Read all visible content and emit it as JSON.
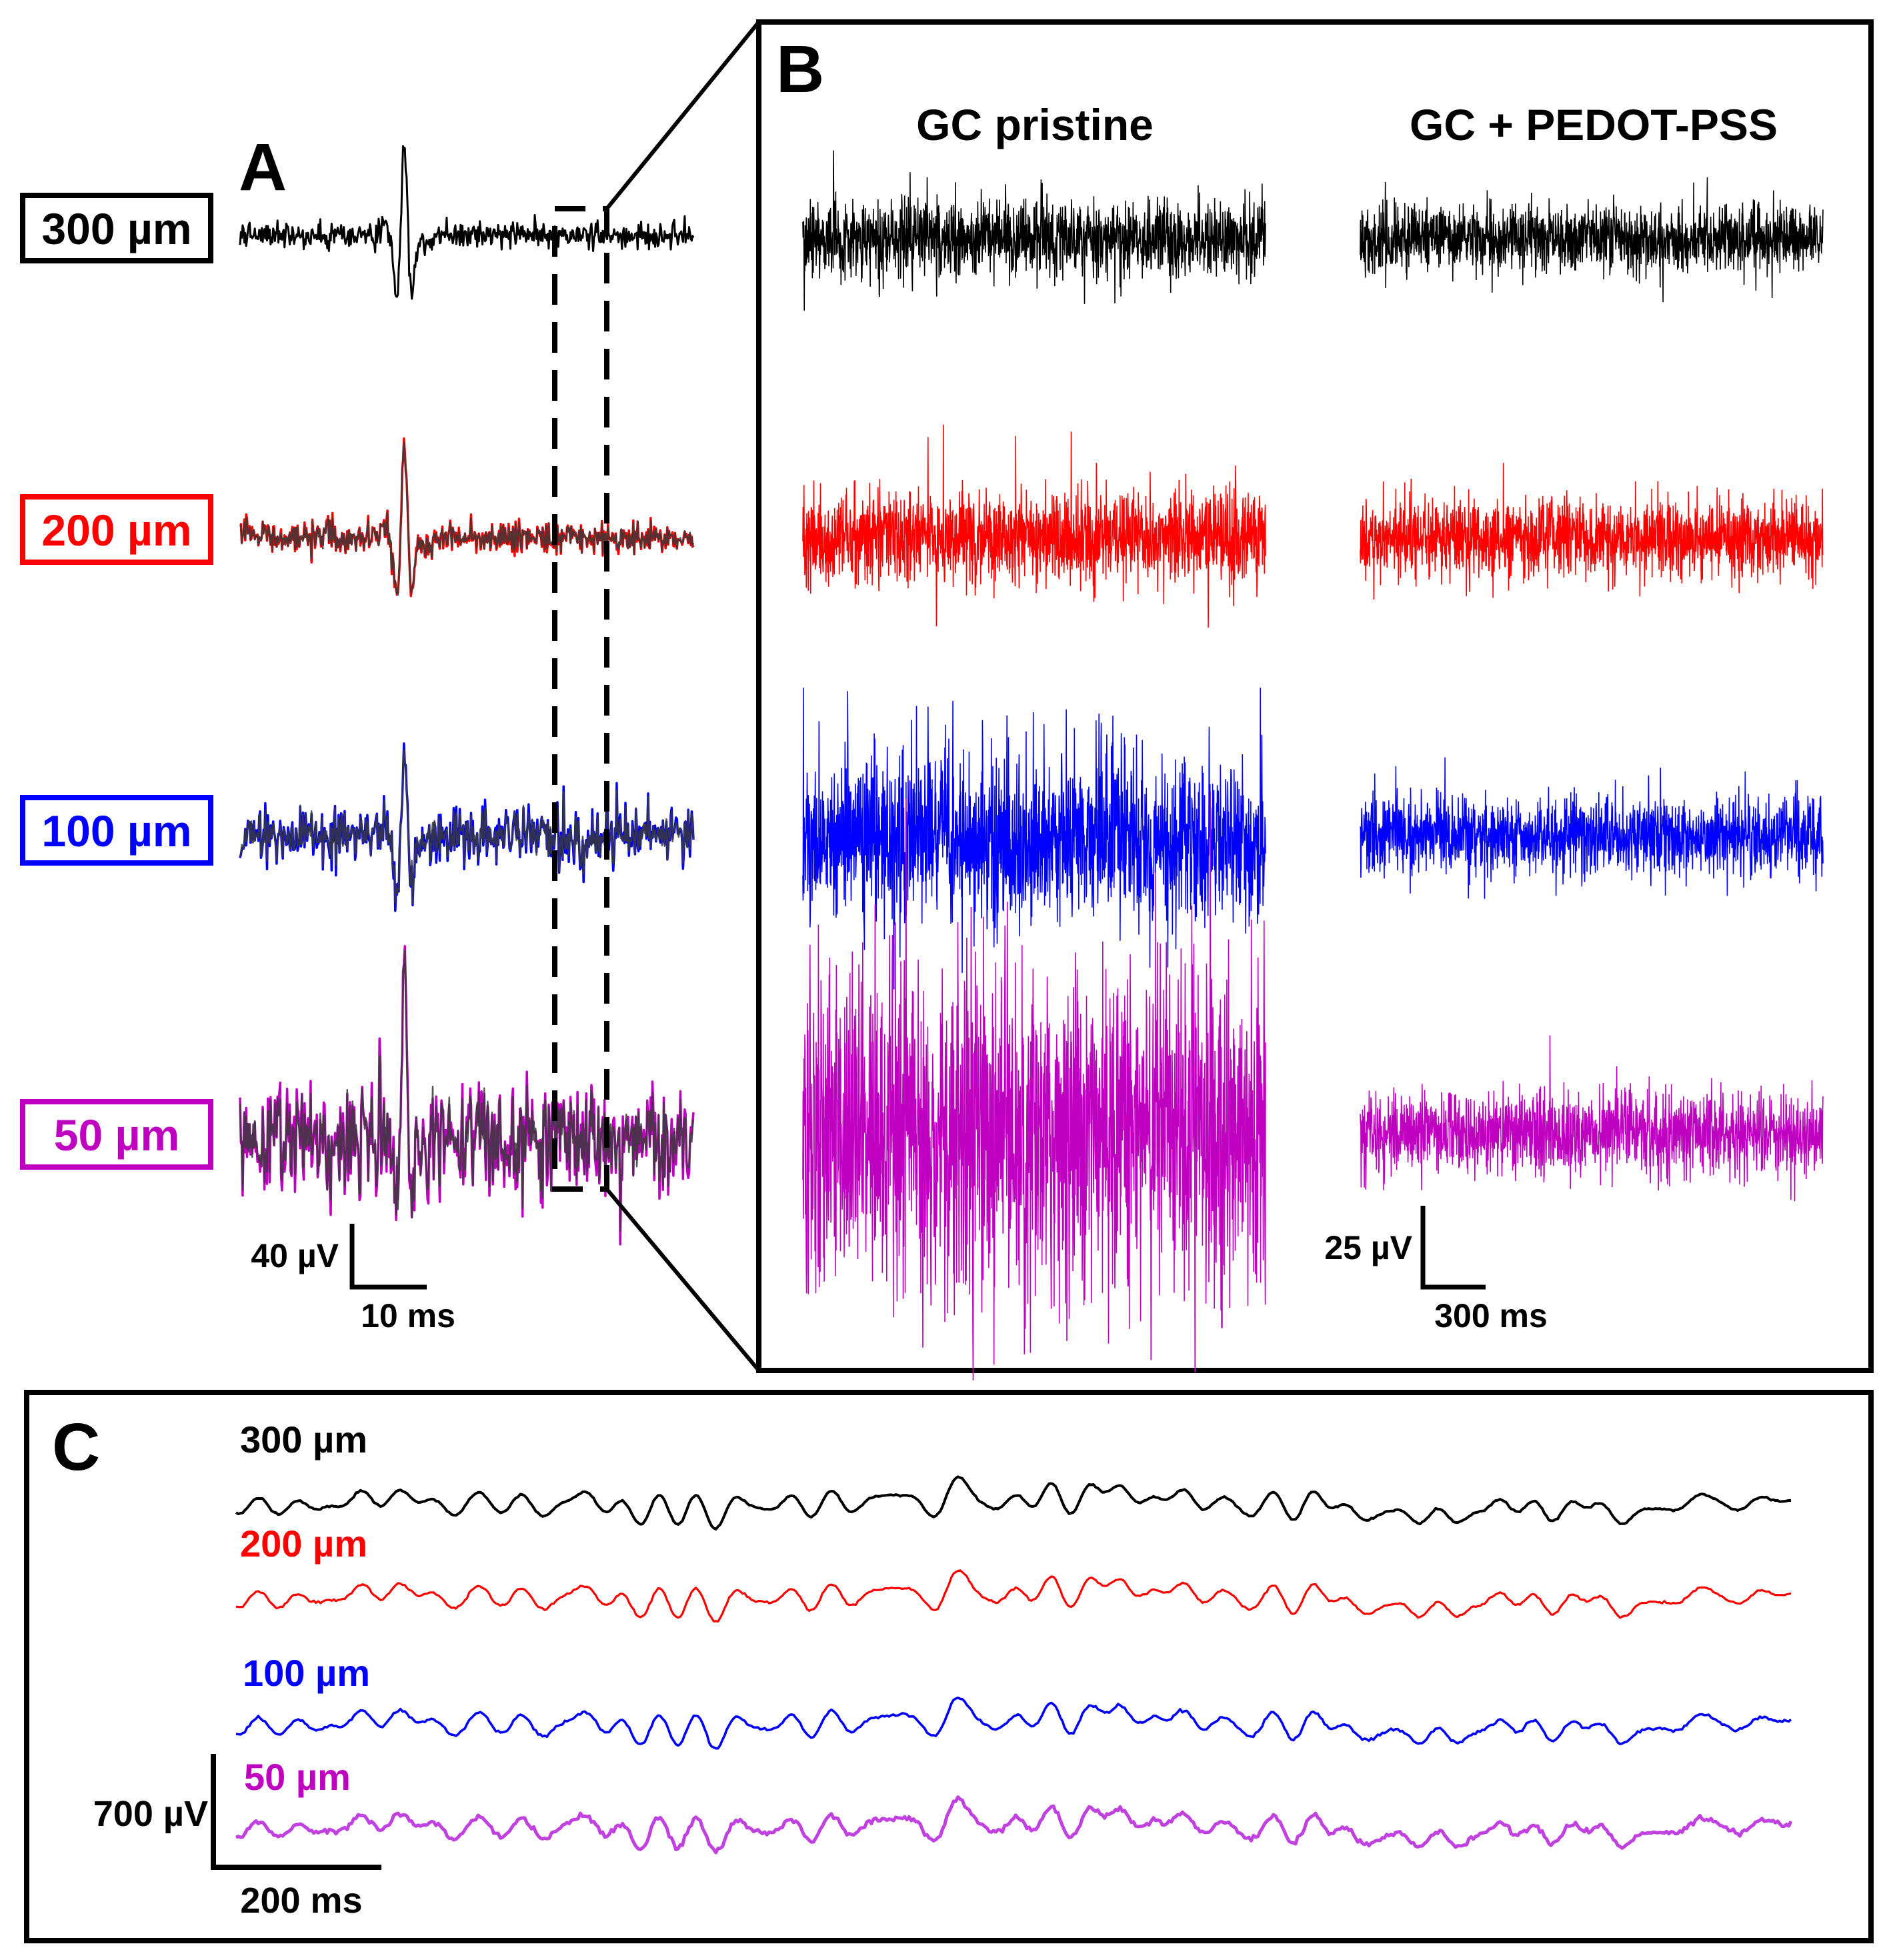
{
  "figure": {
    "panel_a_letter": "A",
    "panel_b_letter": "B",
    "panel_c_letter": "C"
  },
  "colors": {
    "300um": "#000000",
    "200um": "#ff0000",
    "100um": "#0000ff",
    "50um": "#c000c0",
    "overlay": "#3a3a3a",
    "trace_c_50um": "#c040e0"
  },
  "chart_data": [
    {
      "panel": "A",
      "type": "line",
      "description_hidden": false,
      "series": [
        {
          "name": "300 µm",
          "color_key": "300um",
          "noise_uV": 4,
          "spike_peak_uV": 60,
          "spike_trough_uV": -42
        },
        {
          "name": "200 µm",
          "color_key": "200um",
          "noise_uV": 5,
          "spike_peak_uV": 62,
          "spike_trough_uV": -44
        },
        {
          "name": "100 µm",
          "color_key": "100um",
          "noise_uV": 9,
          "spike_peak_uV": 52,
          "spike_trough_uV": -36
        },
        {
          "name": "50 µm",
          "color_key": "50um",
          "noise_uV": 18,
          "spike_peak_uV": 98,
          "spike_trough_uV": -50
        }
      ],
      "spike_time_ms": 21,
      "duration_ms": 58,
      "scalebar": {
        "y_label": "40 µV",
        "y_value_uV": 40,
        "x_label": "10 ms",
        "x_value_ms": 10
      }
    },
    {
      "panel": "B",
      "type": "line",
      "columns": [
        "GC pristine",
        "GC + PEDOT-PSS"
      ],
      "series": [
        {
          "name": "300 µm",
          "color_key": "300um",
          "pristine_amplitude_uV": 14,
          "pedot_amplitude_uV": 12
        },
        {
          "name": "200 µm",
          "color_key": "200um",
          "pristine_amplitude_uV": 17,
          "pedot_amplitude_uV": 14
        },
        {
          "name": "100 µm",
          "color_key": "100um",
          "pristine_amplitude_uV": 30,
          "pedot_amplitude_uV": 14
        },
        {
          "name": "50 µm",
          "color_key": "50um",
          "pristine_amplitude_uV": 60,
          "pedot_amplitude_uV": 15
        }
      ],
      "scalebar": {
        "y_label": "25 µV",
        "y_value_uV": 25,
        "x_label": "300 ms",
        "x_value_ms": 300
      }
    },
    {
      "panel": "C",
      "type": "line",
      "series": [
        {
          "name": "300 µm",
          "color_key": "300um"
        },
        {
          "name": "200 µm",
          "color_key": "200um"
        },
        {
          "name": "100 µm",
          "color_key": "100um"
        },
        {
          "name": "50 µm",
          "color_key": "trace_c_50um"
        }
      ],
      "scalebar": {
        "y_label": "700 µV",
        "y_value_uV": 700,
        "x_label": "200 ms",
        "x_value_ms": 200
      }
    }
  ]
}
